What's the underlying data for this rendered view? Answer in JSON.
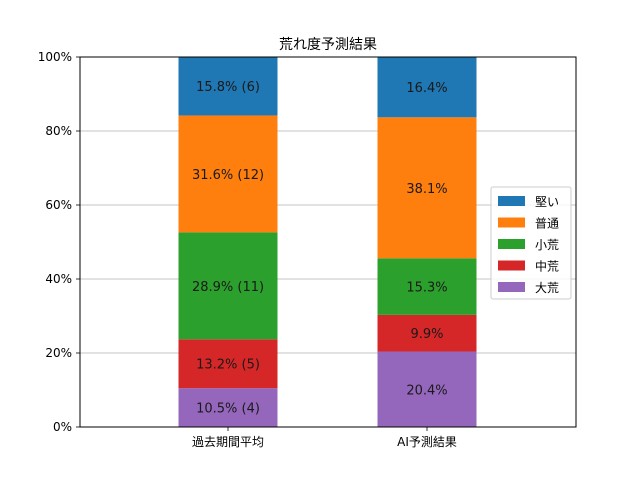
{
  "chart_data": {
    "type": "bar",
    "stacked": true,
    "title": "荒れ度予測結果",
    "xlabel": "",
    "ylabel": "",
    "categories": [
      "過去期間平均",
      "AI予測結果"
    ],
    "ylim": [
      0,
      100
    ],
    "yticks": [
      0,
      20,
      40,
      60,
      80,
      100
    ],
    "ytick_labels": [
      "0%",
      "20%",
      "40%",
      "60%",
      "80%",
      "100%"
    ],
    "grid": "horizontal",
    "legend_position": "right",
    "series": [
      {
        "name": "大荒",
        "color": "#9467bd",
        "values": [
          10.5,
          20.4
        ],
        "labels": [
          "10.5% (4)",
          "20.4%"
        ]
      },
      {
        "name": "中荒",
        "color": "#d62728",
        "values": [
          13.2,
          9.9
        ],
        "labels": [
          "13.2% (5)",
          "9.9%"
        ]
      },
      {
        "name": "小荒",
        "color": "#2ca02c",
        "values": [
          28.9,
          15.3
        ],
        "labels": [
          "28.9% (11)",
          "15.3%"
        ]
      },
      {
        "name": "普通",
        "color": "#ff7f0e",
        "values": [
          31.6,
          38.1
        ],
        "labels": [
          "31.6% (12)",
          "38.1%"
        ]
      },
      {
        "name": "堅い",
        "color": "#1f77b4",
        "values": [
          15.8,
          16.4
        ],
        "labels": [
          "15.8% (6)",
          "16.4%"
        ]
      }
    ],
    "legend_order": [
      "堅い",
      "普通",
      "小荒",
      "中荒",
      "大荒"
    ]
  }
}
